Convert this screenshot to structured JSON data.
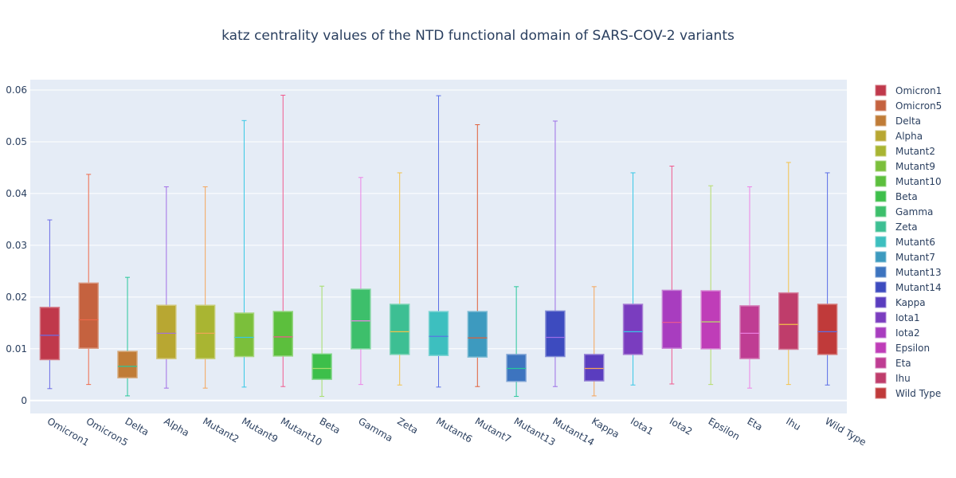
{
  "chart_data": {
    "type": "box",
    "title": "katz centrality values of the NTD functional domain of SARS-COV-2 variants",
    "xlabel": "",
    "ylabel": "",
    "ylim": [
      -0.0025,
      0.062
    ],
    "yticks": [
      0,
      0.01,
      0.02,
      0.03,
      0.04,
      0.05,
      0.06
    ],
    "ytick_labels": [
      "0",
      "0.01",
      "0.02",
      "0.03",
      "0.04",
      "0.05",
      "0.06"
    ],
    "grid": true,
    "legend_position": "right",
    "series": [
      {
        "name": "Omicron1",
        "color": "#c0394b",
        "whisker_color": "#6b6be6",
        "min": 0.0023,
        "q1": 0.0079,
        "median": 0.0126,
        "q3": 0.018,
        "max": 0.0349
      },
      {
        "name": "Omicron5",
        "color": "#c5623f",
        "whisker_color": "#ef6a4a",
        "min": 0.0031,
        "q1": 0.0101,
        "median": 0.0156,
        "q3": 0.0227,
        "max": 0.0437
      },
      {
        "name": "Delta",
        "color": "#c07c37",
        "whisker_color": "#28c89b",
        "min": 0.0009,
        "q1": 0.0044,
        "median": 0.0066,
        "q3": 0.0095,
        "max": 0.0238
      },
      {
        "name": "Alpha",
        "color": "#b8a732",
        "whisker_color": "#a26ee6",
        "min": 0.0024,
        "q1": 0.0081,
        "median": 0.013,
        "q3": 0.0184,
        "max": 0.0413
      },
      {
        "name": "Mutant2",
        "color": "#a9b532",
        "whisker_color": "#f5a55a",
        "min": 0.0024,
        "q1": 0.0081,
        "median": 0.013,
        "q3": 0.0184,
        "max": 0.0413
      },
      {
        "name": "Mutant9",
        "color": "#7bbf3b",
        "whisker_color": "#38c8e6",
        "min": 0.0026,
        "q1": 0.0085,
        "median": 0.0122,
        "q3": 0.0169,
        "max": 0.0541
      },
      {
        "name": "Mutant10",
        "color": "#5cbf3d",
        "whisker_color": "#f05a8e",
        "min": 0.0027,
        "q1": 0.0086,
        "median": 0.0123,
        "q3": 0.0172,
        "max": 0.059
      },
      {
        "name": "Beta",
        "color": "#3dbf4a",
        "whisker_color": "#a6dd6a",
        "min": 0.0008,
        "q1": 0.0041,
        "median": 0.0062,
        "q3": 0.009,
        "max": 0.0221
      },
      {
        "name": "Gamma",
        "color": "#3dbf6b",
        "whisker_color": "#ee84e6",
        "min": 0.0031,
        "q1": 0.01,
        "median": 0.0154,
        "q3": 0.0215,
        "max": 0.0431
      },
      {
        "name": "Zeta",
        "color": "#3dbf93",
        "whisker_color": "#f3c24a",
        "min": 0.003,
        "q1": 0.0089,
        "median": 0.0133,
        "q3": 0.0186,
        "max": 0.044
      },
      {
        "name": "Mutant6",
        "color": "#3dbfbf",
        "whisker_color": "#5a6ee6",
        "min": 0.0026,
        "q1": 0.0087,
        "median": 0.0124,
        "q3": 0.0172,
        "max": 0.0589
      },
      {
        "name": "Mutant7",
        "color": "#3d9abf",
        "whisker_color": "#e0603a",
        "min": 0.0027,
        "q1": 0.0084,
        "median": 0.0121,
        "q3": 0.0172,
        "max": 0.0533
      },
      {
        "name": "Mutant13",
        "color": "#3d74bf",
        "whisker_color": "#28c89b",
        "min": 0.0008,
        "q1": 0.0037,
        "median": 0.0062,
        "q3": 0.0089,
        "max": 0.022
      },
      {
        "name": "Mutant14",
        "color": "#3d4bbf",
        "whisker_color": "#9c6ee6",
        "min": 0.0027,
        "q1": 0.0085,
        "median": 0.0122,
        "q3": 0.0173,
        "max": 0.054
      },
      {
        "name": "Kappa",
        "color": "#5a3dbf",
        "whisker_color": "#f5a55a",
        "min": 0.0009,
        "q1": 0.0038,
        "median": 0.0062,
        "q3": 0.0089,
        "max": 0.022
      },
      {
        "name": "Iota1",
        "color": "#7a3dbf",
        "whisker_color": "#38c8e6",
        "min": 0.003,
        "q1": 0.0089,
        "median": 0.0133,
        "q3": 0.0186,
        "max": 0.044
      },
      {
        "name": "Iota2",
        "color": "#a83dbf",
        "whisker_color": "#f05a8e",
        "min": 0.0032,
        "q1": 0.0101,
        "median": 0.0151,
        "q3": 0.0213,
        "max": 0.0453
      },
      {
        "name": "Epsilon",
        "color": "#bf3db8",
        "whisker_color": "#b6dd6a",
        "min": 0.0031,
        "q1": 0.01,
        "median": 0.0152,
        "q3": 0.0212,
        "max": 0.0415
      },
      {
        "name": "Eta",
        "color": "#bf3d93",
        "whisker_color": "#ee84e6",
        "min": 0.0024,
        "q1": 0.0081,
        "median": 0.013,
        "q3": 0.0183,
        "max": 0.0413
      },
      {
        "name": "Ihu",
        "color": "#bf3d6b",
        "whisker_color": "#f3c24a",
        "min": 0.0031,
        "q1": 0.0099,
        "median": 0.0147,
        "q3": 0.0208,
        "max": 0.046
      },
      {
        "name": "Wild Type",
        "color": "#c03a3a",
        "whisker_color": "#5a6ee6",
        "min": 0.003,
        "q1": 0.0089,
        "median": 0.0133,
        "q3": 0.0186,
        "max": 0.044
      }
    ]
  }
}
